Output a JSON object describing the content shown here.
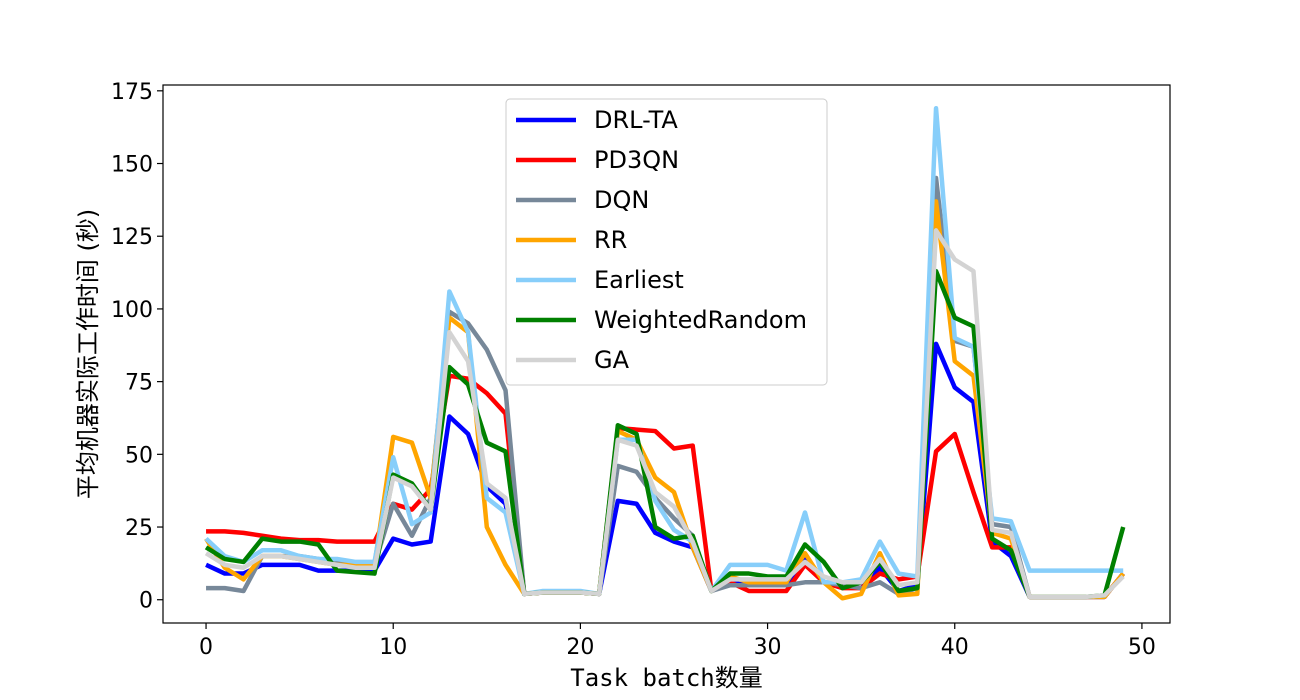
{
  "chart_data": {
    "type": "line",
    "xlabel": "Task batch数量",
    "ylabel": "平均机器实际工作时间 (秒)",
    "xlim": [
      -2.3,
      51.5
    ],
    "ylim": [
      -8,
      177
    ],
    "xticks": [
      0,
      10,
      20,
      30,
      40,
      50
    ],
    "yticks": [
      0,
      25,
      50,
      75,
      100,
      125,
      150,
      175
    ],
    "grid": false,
    "legend_position": "top-center",
    "x": [
      0,
      1,
      2,
      3,
      4,
      5,
      6,
      7,
      8,
      9,
      10,
      11,
      12,
      13,
      14,
      15,
      16,
      17,
      18,
      19,
      20,
      21,
      22,
      23,
      24,
      25,
      26,
      27,
      28,
      29,
      30,
      31,
      32,
      33,
      34,
      35,
      36,
      37,
      38,
      39,
      40,
      41,
      42,
      43,
      44,
      45,
      46,
      47,
      48,
      49
    ],
    "series": [
      {
        "name": "DRL-TA",
        "color": "#0000ff",
        "values": [
          12,
          9,
          9,
          12,
          12,
          12,
          10,
          10,
          10,
          10,
          21,
          19,
          20,
          63,
          57,
          39,
          33,
          2,
          2.5,
          2.5,
          2.5,
          2,
          34,
          33,
          23,
          20,
          18,
          3,
          6,
          5,
          5,
          5,
          14,
          6,
          5,
          4,
          11,
          3,
          5,
          88,
          73,
          68,
          20,
          15,
          1,
          1,
          1,
          1,
          1,
          9
        ]
      },
      {
        "name": "PD3QN",
        "color": "#ff0000",
        "values": [
          23.5,
          23.5,
          23,
          22,
          21,
          20.5,
          20.5,
          20,
          20,
          20,
          33,
          31,
          38,
          77,
          76,
          71,
          64,
          2,
          2.5,
          2.5,
          2.5,
          2,
          59,
          58.5,
          58,
          52,
          53,
          3,
          6,
          3,
          3,
          3,
          12,
          6,
          4,
          4,
          9,
          7,
          8,
          51,
          57,
          37,
          18,
          18,
          1,
          1,
          1,
          1,
          1,
          9
        ]
      },
      {
        "name": "DQN",
        "color": "#778899",
        "values": [
          4,
          4,
          3,
          15,
          15,
          15,
          14,
          13,
          12,
          12,
          33,
          22,
          35,
          99,
          95,
          86,
          72,
          2,
          2.5,
          2.5,
          2.5,
          2,
          46,
          44,
          35,
          28,
          22,
          3,
          5,
          5,
          5,
          5,
          6,
          6,
          5,
          4,
          6,
          2,
          4,
          145,
          89,
          87,
          26,
          25,
          1,
          1,
          1,
          1,
          1,
          9
        ]
      },
      {
        "name": "RR",
        "color": "#ffa500",
        "values": [
          21,
          11,
          7,
          15,
          15,
          14,
          13,
          12,
          12,
          12,
          56,
          54,
          35,
          97,
          92,
          25,
          12,
          2,
          2.5,
          2.5,
          2.5,
          2,
          58,
          55,
          42,
          37,
          18,
          3,
          8,
          6,
          6,
          6,
          16,
          6,
          0.5,
          2,
          16,
          1.5,
          2,
          137,
          82,
          77,
          23,
          21,
          1,
          1,
          1,
          1,
          1,
          9
        ]
      },
      {
        "name": "Earliest",
        "color": "#87cefa",
        "values": [
          21,
          15,
          13,
          17,
          17,
          15,
          14,
          14,
          13,
          13,
          49,
          26,
          30,
          106,
          92,
          35,
          30,
          2,
          3,
          3,
          3,
          2,
          55,
          55,
          34,
          24,
          20,
          3,
          12,
          12,
          12,
          10,
          30,
          6,
          6,
          7,
          20,
          9,
          8,
          169,
          90,
          87,
          28,
          27,
          10,
          10,
          10,
          10,
          10,
          10
        ]
      },
      {
        "name": "WeightedRandom",
        "color": "#008000",
        "values": [
          18,
          14,
          13,
          21,
          20,
          20,
          19,
          10,
          9.5,
          9,
          43,
          40,
          31,
          80,
          74,
          54,
          51,
          2,
          2.5,
          2.5,
          2.5,
          2,
          60,
          57,
          25,
          21,
          22,
          3,
          9,
          9,
          8,
          8,
          19,
          13,
          4,
          6,
          13,
          3,
          4,
          113,
          97,
          94,
          21,
          17,
          1,
          1,
          1,
          1,
          1.5,
          25
        ]
      },
      {
        "name": "GA",
        "color": "#d3d3d3",
        "values": [
          16,
          12,
          11,
          15,
          15,
          14,
          13,
          12,
          11,
          11,
          42,
          39,
          31,
          92,
          82,
          40,
          35,
          2,
          2.5,
          2.5,
          2.5,
          2,
          55,
          53,
          37,
          32,
          20,
          3,
          7,
          7,
          7,
          7,
          13,
          8,
          6,
          6,
          14,
          5,
          6,
          127,
          117,
          113,
          24,
          23,
          1,
          1,
          1,
          1,
          1.5,
          8
        ]
      }
    ]
  }
}
